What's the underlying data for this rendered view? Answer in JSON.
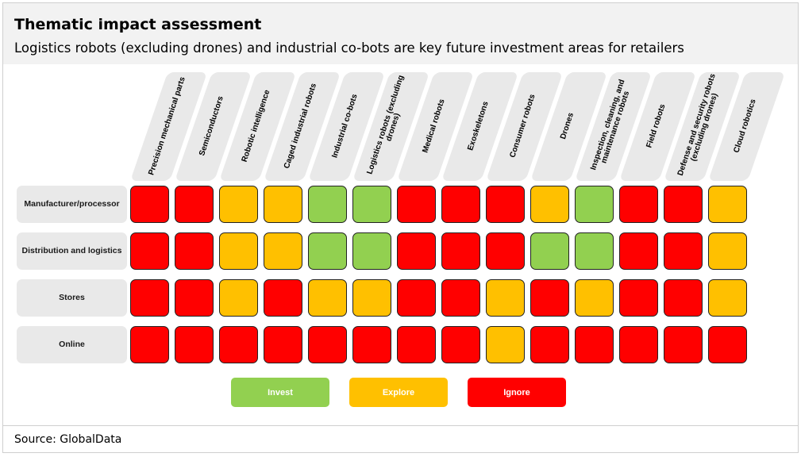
{
  "header": {
    "title": "Thematic impact assessment",
    "subtitle": "Logistics robots (excluding drones) and industrial co-bots are key future investment areas for retailers"
  },
  "footer": {
    "source": "Source: GlobalData"
  },
  "colors": {
    "Invest": "#92d050",
    "Explore": "#ffc000",
    "Ignore": "#ff0000"
  },
  "chart_data": {
    "type": "heatmap",
    "columns": [
      "Precision mechanical parts",
      "Semiconductors",
      "Robotic intelligence",
      "Caged industrial robots",
      "Industrial co-bots",
      "Logistics robots (excluding drones)",
      "Medical robots",
      "Exoskeletons",
      "Consumer robots",
      "Drones",
      "Inspection, cleaning, and maintenance robots",
      "Field robots",
      "Defense and security robots (excluding drones)",
      "Cloud robotics"
    ],
    "rows": [
      "Manufacturer/processor",
      "Distribution and logistics",
      "Stores",
      "Online"
    ],
    "values": [
      [
        "Ignore",
        "Ignore",
        "Explore",
        "Explore",
        "Invest",
        "Invest",
        "Ignore",
        "Ignore",
        "Ignore",
        "Explore",
        "Invest",
        "Ignore",
        "Ignore",
        "Explore"
      ],
      [
        "Ignore",
        "Ignore",
        "Explore",
        "Explore",
        "Invest",
        "Invest",
        "Ignore",
        "Ignore",
        "Ignore",
        "Invest",
        "Invest",
        "Ignore",
        "Ignore",
        "Explore"
      ],
      [
        "Ignore",
        "Ignore",
        "Explore",
        "Ignore",
        "Explore",
        "Explore",
        "Ignore",
        "Ignore",
        "Explore",
        "Ignore",
        "Explore",
        "Ignore",
        "Ignore",
        "Explore"
      ],
      [
        "Ignore",
        "Ignore",
        "Ignore",
        "Ignore",
        "Ignore",
        "Ignore",
        "Ignore",
        "Ignore",
        "Explore",
        "Ignore",
        "Ignore",
        "Ignore",
        "Ignore",
        "Ignore"
      ]
    ],
    "legend": [
      "Invest",
      "Explore",
      "Ignore"
    ]
  }
}
